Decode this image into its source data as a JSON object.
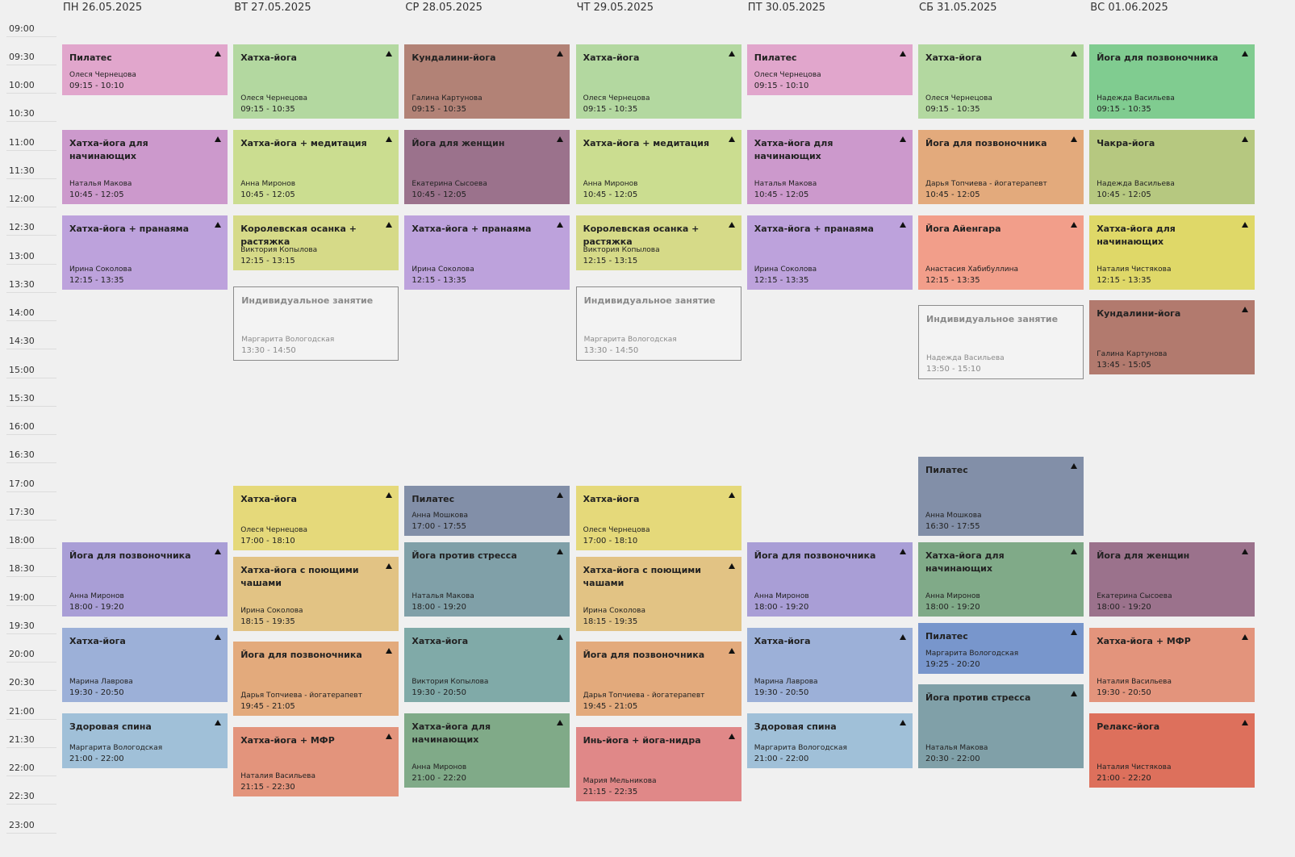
{
  "times": [
    "09:00",
    "09:30",
    "10:00",
    "10:30",
    "11:00",
    "11:30",
    "12:00",
    "12:30",
    "13:00",
    "13:30",
    "14:00",
    "14:30",
    "15:00",
    "15:30",
    "16:00",
    "16:30",
    "17:00",
    "17:30",
    "18:00",
    "18:30",
    "19:00",
    "19:30",
    "20:00",
    "20:30",
    "21:00",
    "21:30",
    "22:00",
    "22:30",
    "23:00"
  ],
  "days": [
    {
      "label": "ПН 26.05.2025",
      "events": [
        {
          "title": "Пилатес",
          "teacher": "Олеся Чернецова",
          "time": "09:15 - 10:10",
          "color": "#e1a6cc"
        },
        {
          "title": "Хатха-йога для начинающих",
          "teacher": "Наталья Макова",
          "time": "10:45 - 12:05",
          "color": "#cc99cc"
        },
        {
          "title": "Хатха-йога + пранаяма",
          "teacher": "Ирина Соколова",
          "time": "12:15 - 13:35",
          "color": "#bda2dc"
        },
        {
          "title": "Йога для позвоночника",
          "teacher": "Анна Миронов",
          "time": "18:00 - 19:20",
          "color": "#a99ed6"
        },
        {
          "title": "Хатха-йога",
          "teacher": "Марина Лаврова",
          "time": "19:30 - 20:50",
          "color": "#9cb0d8"
        },
        {
          "title": "Здоровая спина",
          "teacher": "Маргарита Вологодская",
          "time": "21:00 - 22:00",
          "color": "#a0c0d8"
        }
      ]
    },
    {
      "label": "ВТ 27.05.2025",
      "events": [
        {
          "title": "Хатха-йога",
          "teacher": "Олеся Чернецова",
          "time": "09:15 - 10:35",
          "color": "#b3d8a0"
        },
        {
          "title": "Хатха-йога + медитация",
          "teacher": "Анна Миронов",
          "time": "10:45 - 12:05",
          "color": "#cbdd90"
        },
        {
          "title": "Королевская осанка + растяжка",
          "teacher": "Виктория Копылова",
          "time": "12:15 - 13:15",
          "color": "#d6da88"
        },
        {
          "title": "Индивидуальное занятие",
          "teacher": "Маргарита Вологодская",
          "time": "13:30 - 14:50",
          "color": "#f3f3f3",
          "outline": true
        },
        {
          "title": "Хатха-йога",
          "teacher": "Олеся Чернецова",
          "time": "17:00 - 18:10",
          "color": "#e5d97a"
        },
        {
          "title": "Хатха-йога с поющими чашами",
          "teacher": "Ирина Соколова",
          "time": "18:15 - 19:35",
          "color": "#e2c384"
        },
        {
          "title": "Йога для позвоночника",
          "teacher": "Дарья Топчиева - йогатерапевт",
          "time": "19:45 - 21:05",
          "color": "#e3aa7c"
        },
        {
          "title": "Хатха-йога + МФР",
          "teacher": "Наталия Васильева",
          "time": "21:15 - 22:30",
          "color": "#e3947c"
        }
      ]
    },
    {
      "label": "СР 28.05.2025",
      "events": [
        {
          "title": "Кундалини-йога",
          "teacher": "Галина Картунова",
          "time": "09:15 - 10:35",
          "color": "#b28276"
        },
        {
          "title": "Йога для женщин",
          "teacher": "Екатерина Сысоева",
          "time": "10:45 - 12:05",
          "color": "#9b728c"
        },
        {
          "title": "Хатха-йога + пранаяма",
          "teacher": "Ирина Соколова",
          "time": "12:15 - 13:35",
          "color": "#bda2dc"
        },
        {
          "title": "Пилатес",
          "teacher": "Анна Мошкова",
          "time": "17:00 - 17:55",
          "color": "#828fa8"
        },
        {
          "title": "Йога против стресса",
          "teacher": "Наталья Макова",
          "time": "18:00 - 19:20",
          "color": "#80a0a8"
        },
        {
          "title": "Хатха-йога",
          "teacher": "Виктория Копылова",
          "time": "19:30 - 20:50",
          "color": "#80aaa8"
        },
        {
          "title": "Хатха-йога для начинающих",
          "teacher": "Анна Миронов",
          "time": "21:00 - 22:20",
          "color": "#80aa88"
        }
      ]
    },
    {
      "label": "ЧТ 29.05.2025",
      "events": [
        {
          "title": "Хатха-йога",
          "teacher": "Олеся Чернецова",
          "time": "09:15 - 10:35",
          "color": "#b3d8a0"
        },
        {
          "title": "Хатха-йога + медитация",
          "teacher": "Анна Миронов",
          "time": "10:45 - 12:05",
          "color": "#cbdd90"
        },
        {
          "title": "Королевская осанка + растяжка",
          "teacher": "Виктория Копылова",
          "time": "12:15 - 13:15",
          "color": "#d6da88"
        },
        {
          "title": "Индивидуальное занятие",
          "teacher": "Маргарита Вологодская",
          "time": "13:30 - 14:50",
          "color": "#f3f3f3",
          "outline": true
        },
        {
          "title": "Хатха-йога",
          "teacher": "Олеся Чернецова",
          "time": "17:00 - 18:10",
          "color": "#e5d97a"
        },
        {
          "title": "Хатха-йога с поющими чашами",
          "teacher": "Ирина Соколова",
          "time": "18:15 - 19:35",
          "color": "#e2c384"
        },
        {
          "title": "Йога для позвоночника",
          "teacher": "Дарья Топчиева - йогатерапевт",
          "time": "19:45 - 21:05",
          "color": "#e3aa7c"
        },
        {
          "title": "Инь-йога + йога-нидра",
          "teacher": "Мария Мельникова",
          "time": "21:15 - 22:35",
          "color": "#e08888"
        }
      ]
    },
    {
      "label": "ПТ 30.05.2025",
      "events": [
        {
          "title": "Пилатес",
          "teacher": "Олеся Чернецова",
          "time": "09:15 - 10:10",
          "color": "#e1a6cc"
        },
        {
          "title": "Хатха-йога для начинающих",
          "teacher": "Наталья Макова",
          "time": "10:45 - 12:05",
          "color": "#cc99cc"
        },
        {
          "title": "Хатха-йога + пранаяма",
          "teacher": "Ирина Соколова",
          "time": "12:15 - 13:35",
          "color": "#bda2dc"
        },
        {
          "title": "Йога для позвоночника",
          "teacher": "Анна Миронов",
          "time": "18:00 - 19:20",
          "color": "#a99ed6"
        },
        {
          "title": "Хатха-йога",
          "teacher": "Марина Лаврова",
          "time": "19:30 - 20:50",
          "color": "#9cb0d8"
        },
        {
          "title": "Здоровая спина",
          "teacher": "Маргарита Вологодская",
          "time": "21:00 - 22:00",
          "color": "#a0c0d8"
        }
      ]
    },
    {
      "label": "СБ 31.05.2025",
      "events": [
        {
          "title": "Хатха-йога",
          "teacher": "Олеся Чернецова",
          "time": "09:15 - 10:35",
          "color": "#b3d8a0"
        },
        {
          "title": "Йога для позвоночника",
          "teacher": "Дарья Топчиева - йогатерапевт",
          "time": "10:45 - 12:05",
          "color": "#e3aa7c"
        },
        {
          "title": "Йога Айенгара",
          "teacher": "Анастасия Хабибуллина",
          "time": "12:15 - 13:35",
          "color": "#f29e8a"
        },
        {
          "title": "Индивидуальное занятие",
          "teacher": "Надежда Васильева",
          "time": "13:50 - 15:10",
          "color": "#f3f3f3",
          "outline": true
        },
        {
          "title": "Пилатес",
          "teacher": "Анна Мошкова",
          "time": "16:30 - 17:55",
          "color": "#828fa8"
        },
        {
          "title": "Хатха-йога для начинающих",
          "teacher": "Анна Миронов",
          "time": "18:00 - 19:20",
          "color": "#80aa88"
        },
        {
          "title": "Пилатес",
          "teacher": "Маргарита Вологодская",
          "time": "19:25 - 20:20",
          "color": "#7896cc"
        },
        {
          "title": "Йога против стресса",
          "teacher": "Наталья Макова",
          "time": "20:30 - 22:00",
          "color": "#80a0a8"
        }
      ]
    },
    {
      "label": "ВС 01.06.2025",
      "events": [
        {
          "title": "Йога для позвоночника",
          "teacher": "Надежда Васильева",
          "time": "09:15 - 10:35",
          "color": "#80cc90"
        },
        {
          "title": "Чакра-йога",
          "teacher": "Надежда Васильева",
          "time": "10:45 - 12:05",
          "color": "#b6c880"
        },
        {
          "title": "Хатха-йога для начинающих",
          "teacher": "Наталия Чистякова",
          "time": "12:15 - 13:35",
          "color": "#dfd868"
        },
        {
          "title": "Кундалини-йога",
          "teacher": "Галина Картунова",
          "time": "13:45 - 15:05",
          "color": "#b27a6e"
        },
        {
          "title": "Йога для женщин",
          "teacher": "Екатерина Сысоева",
          "time": "18:00 - 19:20",
          "color": "#9b728c"
        },
        {
          "title": "Хатха-йога + МФР",
          "teacher": "Наталия Васильева",
          "time": "19:30 - 20:50",
          "color": "#e3947c"
        },
        {
          "title": "Релакс-йога",
          "teacher": "Наталия Чистякова",
          "time": "21:00 - 22:20",
          "color": "#dd705c"
        }
      ]
    }
  ]
}
